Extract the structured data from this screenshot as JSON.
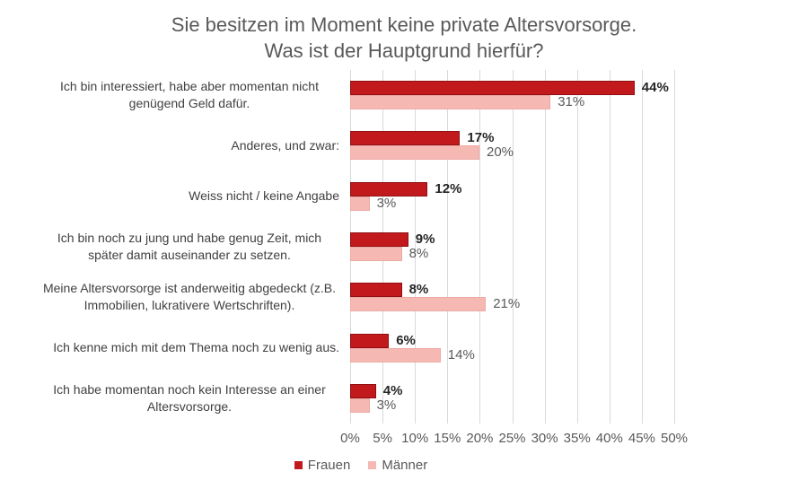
{
  "chart_data": {
    "type": "bar",
    "orientation": "horizontal",
    "title": "Sie besitzen im Moment keine private Altersvorsorge. Was ist der Hauptgrund hierfür?",
    "title_lines": [
      "Sie besitzen im Moment keine private Altersvorsorge.",
      "Was ist der Hauptgrund hierfür?"
    ],
    "categories": [
      "Ich bin interessiert, habe aber momentan nicht genügend Geld dafür.",
      "Anderes, und zwar:",
      "Weiss nicht / keine Angabe",
      "Ich bin noch zu jung und habe genug Zeit, mich später damit auseinander zu setzen.",
      "Meine Altersvorsorge ist anderweitig abgedeckt (z.B. Immobilien, lukrativere Wertschriften).",
      "Ich kenne mich mit dem Thema noch zu wenig aus.",
      "Ich habe momentan noch kein Interesse an einer Altersvorsorge."
    ],
    "series": [
      {
        "name": "Frauen",
        "color": "#c2191d",
        "border_color": "#8f1013",
        "values": [
          44,
          17,
          12,
          9,
          8,
          6,
          4
        ]
      },
      {
        "name": "Männer",
        "color": "#f5b8b3",
        "border_color": "#edaaa5",
        "values": [
          31,
          20,
          3,
          8,
          21,
          14,
          3
        ]
      }
    ],
    "value_suffix": "%",
    "xlim": [
      0,
      50
    ],
    "x_ticks": [
      "0%",
      "5%",
      "10%",
      "15%",
      "20%",
      "25%",
      "30%",
      "35%",
      "40%",
      "45%",
      "50%"
    ],
    "grid": true,
    "legend_position": "bottom",
    "colors": {
      "grid": "#d9d9d9",
      "title": "#595959",
      "category": "#404040",
      "tick": "#595959",
      "value_frauen": "#262626",
      "value_maenner": "#595959"
    }
  }
}
